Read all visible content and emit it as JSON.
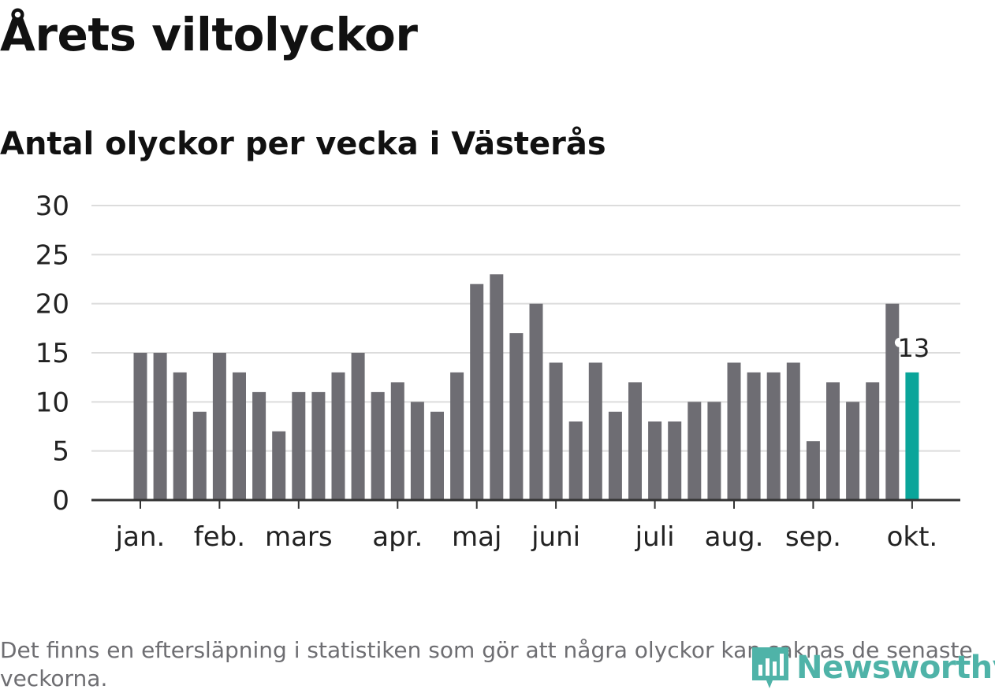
{
  "header": {
    "title": "Årets viltolyckor",
    "subtitle": "Antal olyckor per vecka i Västerås"
  },
  "footnote": "Det finns en eftersläpning i statistiken som gör att några olyckor kan saknas de senaste veckorna.",
  "brand": {
    "name": "Newsworthy",
    "color": "#4fb3a8",
    "icon": "bar-chart-icon"
  },
  "chart_data": {
    "type": "bar",
    "title": "Årets viltolyckor",
    "subtitle": "Antal olyckor per vecka i Västerås",
    "xlabel": "",
    "ylabel": "",
    "ylim": [
      0,
      30
    ],
    "yticks": [
      0,
      5,
      10,
      15,
      20,
      25,
      30
    ],
    "grid": true,
    "values": [
      15,
      15,
      13,
      9,
      15,
      13,
      11,
      7,
      11,
      11,
      13,
      15,
      11,
      12,
      10,
      9,
      13,
      22,
      23,
      17,
      20,
      14,
      8,
      14,
      9,
      12,
      8,
      8,
      10,
      10,
      14,
      13,
      13,
      14,
      6,
      12,
      10,
      12,
      20,
      13
    ],
    "highlight_index": 39,
    "highlight_label": "13",
    "bar_color": "#6e6d73",
    "highlight_color": "#0aa59a",
    "month_ticks": [
      {
        "label": "jan.",
        "bar": 0
      },
      {
        "label": "feb.",
        "bar": 4
      },
      {
        "label": "mars",
        "bar": 8
      },
      {
        "label": "apr.",
        "bar": 13
      },
      {
        "label": "maj",
        "bar": 17
      },
      {
        "label": "juni",
        "bar": 21
      },
      {
        "label": "juli",
        "bar": 26
      },
      {
        "label": "aug.",
        "bar": 30
      },
      {
        "label": "sep.",
        "bar": 34
      },
      {
        "label": "okt.",
        "bar": 39
      }
    ]
  }
}
